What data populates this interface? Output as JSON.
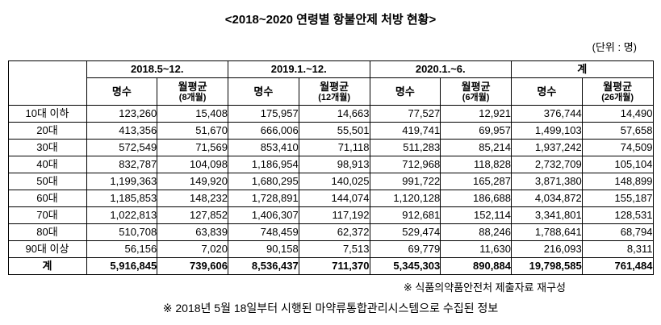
{
  "title": "<2018~2020 연령별 항불안제 처방 현황>",
  "unit_label": "(단위 : 명)",
  "table": {
    "groups": [
      {
        "label": "2018.5~12.",
        "sub": [
          {
            "label": "명수"
          },
          {
            "label": "월평균",
            "note": "(8개월)"
          }
        ]
      },
      {
        "label": "2019.1.~12.",
        "sub": [
          {
            "label": "명수"
          },
          {
            "label": "월평균",
            "note": "(12개월)"
          }
        ]
      },
      {
        "label": "2020.1.~6.",
        "sub": [
          {
            "label": "명수"
          },
          {
            "label": "월평균",
            "note": "(6개월)"
          }
        ]
      },
      {
        "label": "계",
        "sub": [
          {
            "label": "명수"
          },
          {
            "label": "월평균",
            "note": "(26개월)"
          }
        ]
      }
    ],
    "rows": [
      {
        "label": "10대 이하",
        "values": [
          "123,260",
          "15,408",
          "175,957",
          "14,663",
          "77,527",
          "12,921",
          "376,744",
          "14,490"
        ]
      },
      {
        "label": "20대",
        "values": [
          "413,356",
          "51,670",
          "666,006",
          "55,501",
          "419,741",
          "69,957",
          "1,499,103",
          "57,658"
        ]
      },
      {
        "label": "30대",
        "values": [
          "572,549",
          "71,569",
          "853,410",
          "71,118",
          "511,283",
          "85,214",
          "1,937,242",
          "74,509"
        ]
      },
      {
        "label": "40대",
        "values": [
          "832,787",
          "104,098",
          "1,186,954",
          "98,913",
          "712,968",
          "118,828",
          "2,732,709",
          "105,104"
        ]
      },
      {
        "label": "50대",
        "values": [
          "1,199,363",
          "149,920",
          "1,680,295",
          "140,025",
          "991,722",
          "165,287",
          "3,871,380",
          "148,899"
        ]
      },
      {
        "label": "60대",
        "values": [
          "1,185,853",
          "148,232",
          "1,728,891",
          "144,074",
          "1,120,128",
          "186,688",
          "4,034,872",
          "155,187"
        ]
      },
      {
        "label": "70대",
        "values": [
          "1,022,813",
          "127,852",
          "1,406,307",
          "117,192",
          "912,681",
          "152,114",
          "3,341,801",
          "128,531"
        ]
      },
      {
        "label": "80대",
        "values": [
          "510,708",
          "63,839",
          "748,459",
          "62,372",
          "529,474",
          "88,246",
          "1,788,641",
          "68,794"
        ]
      },
      {
        "label": "90대 이상",
        "values": [
          "56,156",
          "7,020",
          "90,158",
          "7,513",
          "69,779",
          "11,630",
          "216,093",
          "8,311"
        ]
      },
      {
        "label": "계",
        "values": [
          "5,916,845",
          "739,606",
          "8,536,437",
          "711,370",
          "5,345,303",
          "890,884",
          "19,798,585",
          "761,484"
        ],
        "total": true
      }
    ]
  },
  "notes": [
    "※ 식품의약품안전처 제출자료 재구성",
    "※ 2018년 5월 18일부터 시행된 마약류통합관리시스템으로 수집된 정보"
  ]
}
